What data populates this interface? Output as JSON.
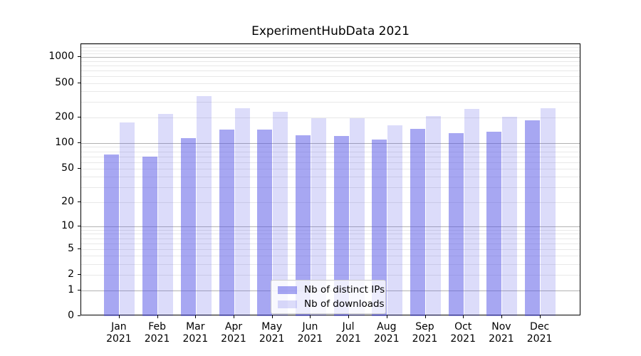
{
  "title": "ExperimentHubData 2021",
  "chart_data": {
    "type": "bar",
    "title": "ExperimentHubData 2021",
    "year": "2021",
    "months": [
      "Jan",
      "Feb",
      "Mar",
      "Apr",
      "May",
      "Jun",
      "Jul",
      "Aug",
      "Sep",
      "Oct",
      "Nov",
      "Dec"
    ],
    "categories": [
      "Jan 2021",
      "Feb 2021",
      "Mar 2021",
      "Apr 2021",
      "May 2021",
      "Jun 2021",
      "Jul 2021",
      "Aug 2021",
      "Sep 2021",
      "Oct 2021",
      "Nov 2021",
      "Dec 2021"
    ],
    "series": [
      {
        "name": "Nb of distinct IPs",
        "color": "rgba(80,80,230,0.5)",
        "values": [
          73,
          70,
          115,
          145,
          145,
          124,
          120,
          111,
          147,
          131,
          137,
          186
        ]
      },
      {
        "name": "Nb of downloads",
        "color": "rgba(80,80,230,0.2)",
        "values": [
          173,
          220,
          350,
          257,
          232,
          195,
          195,
          160,
          208,
          250,
          203,
          257
        ]
      }
    ],
    "xlabel": "",
    "ylabel": "",
    "yscale": "log10(value+1)",
    "ylim": [
      0,
      1410
    ],
    "yticks": [
      {
        "value": 1000,
        "label": "1000"
      },
      {
        "value": 500,
        "label": "500"
      },
      {
        "value": 200,
        "label": "200"
      },
      {
        "value": 100,
        "label": "100"
      },
      {
        "value": 50,
        "label": "50"
      },
      {
        "value": 20,
        "label": "20"
      },
      {
        "value": 10,
        "label": "10"
      },
      {
        "value": 5,
        "label": "5"
      },
      {
        "value": 2,
        "label": "2"
      },
      {
        "value": 1,
        "label": "1"
      },
      {
        "value": 0,
        "label": "0"
      }
    ],
    "grid": {
      "major": [
        1,
        10,
        100,
        1000
      ],
      "minor": [
        2,
        3,
        4,
        5,
        6,
        7,
        8,
        9,
        20,
        30,
        40,
        50,
        60,
        70,
        80,
        90,
        200,
        300,
        400,
        500,
        600,
        700,
        800,
        900,
        1100,
        1200,
        1300,
        1400
      ]
    },
    "legend_position": "lower center",
    "grid_on": true
  },
  "colors": {
    "grid_major": "#b2b2b2",
    "grid_minor": "#e8e8e8",
    "spine": "#000000",
    "legend_border": "#cccccc",
    "legend_bg": "rgba(255,255,255,0.8)",
    "text": "#000000"
  }
}
